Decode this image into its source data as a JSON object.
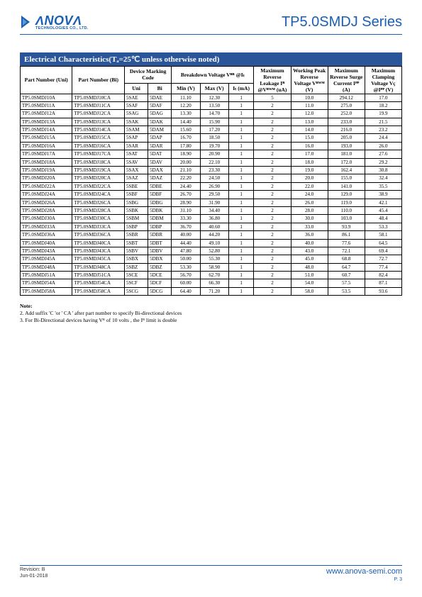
{
  "header": {
    "logo_name": "ΛNOVΛ",
    "logo_sub": "TECHNOLOGIES CO., LTD.",
    "series_title": "TP5.0SMDJ Series"
  },
  "section_title": "Electrical Characteristics(Tₐ=25℃ unless otherwise noted)",
  "table": {
    "headers": {
      "part_uni": "Part Number (Uni)",
      "part_bi": "Part Number (Bi)",
      "marking": "Device Marking Code",
      "marking_uni": "Uni",
      "marking_bi": "Bi",
      "breakdown": "Breakdown Voltage Vᴮᴿ @Iₜ",
      "bv_min": "Min (V)",
      "bv_max": "Max (V)",
      "bv_it": "Iₜ (mA)",
      "leak": "Maximum Reverse Leakage Iᴿ @Vᴿᵂᴹ (uA)",
      "vrwm": "Working Peak Reverse Voltage Vᴿᵂᴹ (V)",
      "ipp": "Maximum Reverse Surge Current Iᴾᴾ (A)",
      "vc": "Maximum Clamping Voltage Vҫ @Iᴾᴾ (V)"
    },
    "rows": [
      {
        "uni": "TP5.0SMDJ10A",
        "bi": "TP5.0SMDJ10CA",
        "mu": "5SAE",
        "mb": "5DAE",
        "min": "11.10",
        "max": "12.30",
        "it": "1",
        "ir": "5",
        "vrwm": "10.0",
        "ipp": "294.12",
        "vc": "17.0"
      },
      {
        "uni": "TP5.0SMDJ11A",
        "bi": "TP5.0SMDJ11CA",
        "mu": "5SAF",
        "mb": "5DAF",
        "min": "12.20",
        "max": "13.50",
        "it": "1",
        "ir": "2",
        "vrwm": "11.0",
        "ipp": "275.0",
        "vc": "18.2"
      },
      {
        "uni": "TP5.0SMDJ12A",
        "bi": "TP5.0SMDJ12CA",
        "mu": "5SAG",
        "mb": "5DAG",
        "min": "13.30",
        "max": "14.70",
        "it": "1",
        "ir": "2",
        "vrwm": "12.0",
        "ipp": "252.0",
        "vc": "19.9"
      },
      {
        "uni": "TP5.0SMDJ13A",
        "bi": "TP5.0SMDJ13CA",
        "mu": "5SAK",
        "mb": "5DAK",
        "min": "14.40",
        "max": "15.90",
        "it": "1",
        "ir": "2",
        "vrwm": "13.0",
        "ipp": "233.0",
        "vc": "21.5"
      },
      {
        "uni": "TP5.0SMDJ14A",
        "bi": "TP5.0SMDJ14CA",
        "mu": "5SAM",
        "mb": "5DAM",
        "min": "15.60",
        "max": "17.20",
        "it": "1",
        "ir": "2",
        "vrwm": "14.0",
        "ipp": "216.0",
        "vc": "23.2"
      },
      {
        "uni": "TP5.0SMDJ15A",
        "bi": "TP5.0SMDJ15CA",
        "mu": "5SAP",
        "mb": "5DAP",
        "min": "16.70",
        "max": "18.50",
        "it": "1",
        "ir": "2",
        "vrwm": "15.0",
        "ipp": "205.0",
        "vc": "24.4"
      },
      {
        "uni": "TP5.0SMDJ16A",
        "bi": "TP5.0SMDJ16CA",
        "mu": "5SAR",
        "mb": "5DAR",
        "min": "17.80",
        "max": "19.70",
        "it": "1",
        "ir": "2",
        "vrwm": "16.0",
        "ipp": "193.0",
        "vc": "26.0"
      },
      {
        "uni": "TP5.0SMDJ17A",
        "bi": "TP5.0SMDJ17CA",
        "mu": "5SAT",
        "mb": "5DAT",
        "min": "18.90",
        "max": "20.90",
        "it": "1",
        "ir": "2",
        "vrwm": "17.0",
        "ipp": "181.0",
        "vc": "27.6"
      },
      {
        "uni": "TP5.0SMDJ18A",
        "bi": "TP5.0SMDJ18CA",
        "mu": "5SAV",
        "mb": "5DAV",
        "min": "20.00",
        "max": "22.10",
        "it": "1",
        "ir": "2",
        "vrwm": "18.0",
        "ipp": "172.0",
        "vc": "29.2"
      },
      {
        "uni": "TP5.0SMDJ19A",
        "bi": "TP5.0SMDJ19CA",
        "mu": "5SAX",
        "mb": "5DAX",
        "min": "21.10",
        "max": "23.30",
        "it": "1",
        "ir": "2",
        "vrwm": "19.0",
        "ipp": "162.4",
        "vc": "30.8"
      },
      {
        "uni": "TP5.0SMDJ20A",
        "bi": "TP5.0SMDJ20CA",
        "mu": "5SAZ",
        "mb": "5DAZ",
        "min": "22.20",
        "max": "24.50",
        "it": "1",
        "ir": "2",
        "vrwm": "20.0",
        "ipp": "155.0",
        "vc": "32.4"
      },
      {
        "uni": "TP5.0SMDJ22A",
        "bi": "TP5.0SMDJ22CA",
        "mu": "5SBE",
        "mb": "5DBE",
        "min": "24.40",
        "max": "26.90",
        "it": "1",
        "ir": "2",
        "vrwm": "22.0",
        "ipp": "141.0",
        "vc": "35.5"
      },
      {
        "uni": "TP5.0SMDJ24A",
        "bi": "TP5.0SMDJ24CA",
        "mu": "5SBF",
        "mb": "5DBF",
        "min": "26.70",
        "max": "29.50",
        "it": "1",
        "ir": "2",
        "vrwm": "24.0",
        "ipp": "129.0",
        "vc": "38.9"
      },
      {
        "uni": "TP5.0SMDJ26A",
        "bi": "TP5.0SMDJ26CA",
        "mu": "5SBG",
        "mb": "5DBG",
        "min": "28.90",
        "max": "31.90",
        "it": "1",
        "ir": "2",
        "vrwm": "26.0",
        "ipp": "119.0",
        "vc": "42.1"
      },
      {
        "uni": "TP5.0SMDJ28A",
        "bi": "TP5.0SMDJ28CA",
        "mu": "5SBK",
        "mb": "5DBK",
        "min": "31.10",
        "max": "34.40",
        "it": "1",
        "ir": "2",
        "vrwm": "28.0",
        "ipp": "110.0",
        "vc": "45.4"
      },
      {
        "uni": "TP5.0SMDJ30A",
        "bi": "TP5.0SMDJ30CA",
        "mu": "5SBM",
        "mb": "5DBM",
        "min": "33.30",
        "max": "36.80",
        "it": "1",
        "ir": "2",
        "vrwm": "30.0",
        "ipp": "103.0",
        "vc": "48.4"
      },
      {
        "uni": "TP5.0SMDJ33A",
        "bi": "TP5.0SMDJ33CA",
        "mu": "5SBP",
        "mb": "5DBP",
        "min": "36.70",
        "max": "40.60",
        "it": "1",
        "ir": "2",
        "vrwm": "33.0",
        "ipp": "93.9",
        "vc": "53.3"
      },
      {
        "uni": "TP5.0SMDJ36A",
        "bi": "TP5.0SMDJ36CA",
        "mu": "5SBR",
        "mb": "5DBR",
        "min": "40.00",
        "max": "44.20",
        "it": "1",
        "ir": "2",
        "vrwm": "36.0",
        "ipp": "86.1",
        "vc": "58.1"
      },
      {
        "uni": "TP5.0SMDJ40A",
        "bi": "TP5.0SMDJ40CA",
        "mu": "5SBT",
        "mb": "5DBT",
        "min": "44.40",
        "max": "49.10",
        "it": "1",
        "ir": "2",
        "vrwm": "40.0",
        "ipp": "77.6",
        "vc": "64.5"
      },
      {
        "uni": "TP5.0SMDJ43A",
        "bi": "TP5.0SMDJ43CA",
        "mu": "5SBV",
        "mb": "5DBV",
        "min": "47.80",
        "max": "52.80",
        "it": "1",
        "ir": "2",
        "vrwm": "43.0",
        "ipp": "72.1",
        "vc": "69.4"
      },
      {
        "uni": "TP5.0SMDJ45A",
        "bi": "TP5.0SMDJ45CA",
        "mu": "5SBX",
        "mb": "5DBX",
        "min": "50.00",
        "max": "55.30",
        "it": "1",
        "ir": "2",
        "vrwm": "45.0",
        "ipp": "68.8",
        "vc": "72.7"
      },
      {
        "uni": "TP5.0SMDJ48A",
        "bi": "TP5.0SMDJ48CA",
        "mu": "5SBZ",
        "mb": "5DBZ",
        "min": "53.30",
        "max": "58.90",
        "it": "1",
        "ir": "2",
        "vrwm": "48.0",
        "ipp": "64.7",
        "vc": "77.4"
      },
      {
        "uni": "TP5.0SMDJ51A",
        "bi": "TP5.0SMDJ51CA",
        "mu": "5SCE",
        "mb": "5DCE",
        "min": "56.70",
        "max": "62.70",
        "it": "1",
        "ir": "2",
        "vrwm": "51.0",
        "ipp": "60.7",
        "vc": "82.4"
      },
      {
        "uni": "TP5.0SMDJ54A",
        "bi": "TP5.0SMDJ54CA",
        "mu": "5SCF",
        "mb": "5DCF",
        "min": "60.00",
        "max": "66.30",
        "it": "1",
        "ir": "2",
        "vrwm": "54.0",
        "ipp": "57.5",
        "vc": "87.1"
      },
      {
        "uni": "TP5.0SMDJ58A",
        "bi": "TP5.0SMDJ58CA",
        "mu": "5SCG",
        "mb": "5DCG",
        "min": "64.40",
        "max": "71.20",
        "it": "1",
        "ir": "2",
        "vrwm": "58.0",
        "ipp": "53.5",
        "vc": "93.6"
      }
    ]
  },
  "notes": {
    "head": "Note:",
    "n2": "2. Add suffix 'C 'or ' CA ' after part number to specify Bi-directional devices",
    "n3": "3. For Bi-Directional devices having Vᴿ of 10 volts , the Iᴿ limit is double"
  },
  "footer": {
    "rev": "Revision: B",
    "date": "Jun-01-2018",
    "url": "www.anova-semi.com",
    "page": "P. 3"
  }
}
